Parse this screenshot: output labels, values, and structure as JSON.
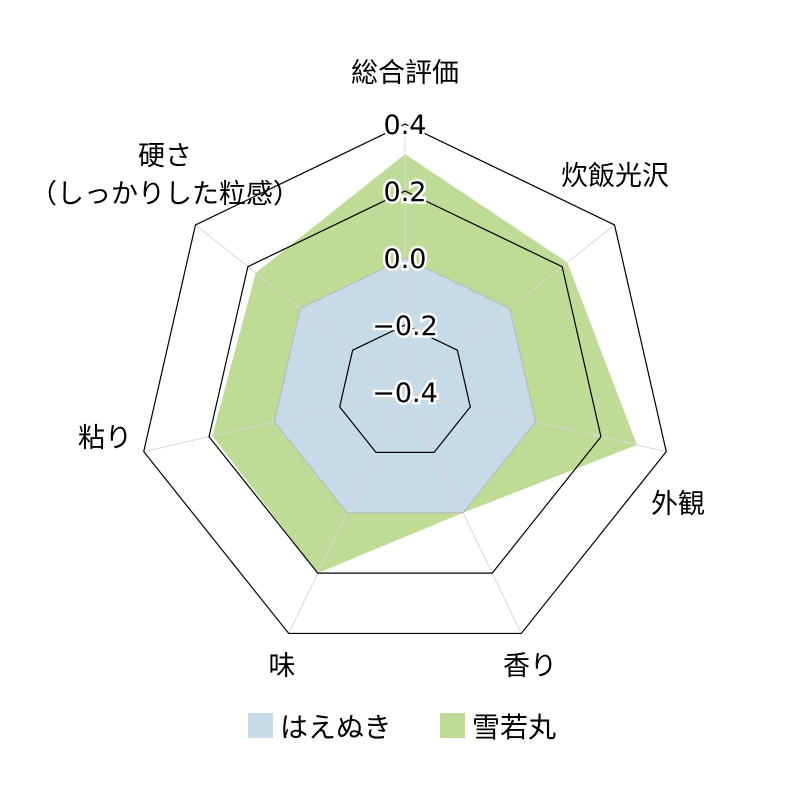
{
  "chart_data": {
    "type": "radar",
    "title": "",
    "axes": [
      "総合評価",
      "炊飯光沢",
      "外観",
      "香り",
      "味",
      "粘り",
      "硬さ\n（しっかりした粒感）"
    ],
    "rlim": [
      -0.4,
      0.4
    ],
    "ticks": [
      "0.4",
      "0.2",
      "0.0",
      "−0.2",
      "−0.4"
    ],
    "tick_values": [
      0.4,
      0.2,
      0.0,
      -0.2,
      -0.4
    ],
    "grid": true,
    "legend_position": "bottom",
    "series": [
      {
        "name": "はえぬき",
        "color": "#c5dce8",
        "values": [
          0.0,
          0.0,
          0.0,
          0.0,
          0.0,
          0.0,
          0.0
        ]
      },
      {
        "name": "雪若丸",
        "color": "#bedc96",
        "values": [
          0.31,
          0.22,
          0.31,
          0.0,
          0.2,
          0.19,
          0.17
        ]
      }
    ]
  }
}
